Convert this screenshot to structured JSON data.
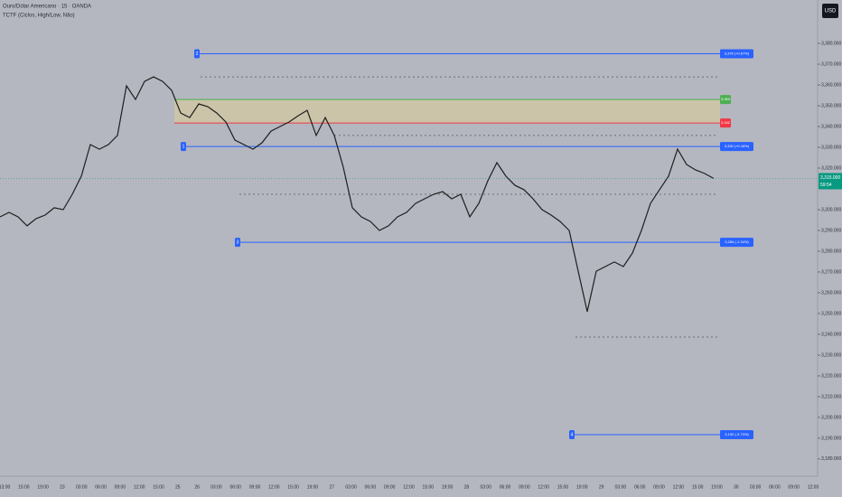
{
  "header": {
    "symbol": "Ouro/Dólar Americano · 15 · OANDA",
    "indicator": "TCTF (Ciclos, High/Low, Não)",
    "currency_button": "USD"
  },
  "chart_data": {
    "type": "line",
    "color": "#1e1e1e",
    "values": [
      3296.5,
      3298.7,
      3296.5,
      3292.2,
      3295.7,
      3297.4,
      3300.9,
      3300.0,
      3307.4,
      3316.1,
      3331.3,
      3329.1,
      3331.3,
      3335.7,
      3359.6,
      3353.0,
      3361.7,
      3363.9,
      3361.7,
      3357.4,
      3346.5,
      3344.3,
      3350.9,
      3349.6,
      3346.5,
      3342.2,
      3333.5,
      3331.3,
      3329.1,
      3332.2,
      3337.8,
      3340.0,
      3342.2,
      3345.2,
      3347.8,
      3335.7,
      3344.3,
      3335.7,
      3320.4,
      3300.9,
      3296.5,
      3294.3,
      3290.0,
      3292.2,
      3296.5,
      3298.7,
      3303.0,
      3305.2,
      3307.4,
      3308.7,
      3305.2,
      3307.4,
      3296.5,
      3303.0,
      3313.9,
      3322.6,
      3316.1,
      3311.7,
      3309.6,
      3305.2,
      3300.0,
      3297.4,
      3294.3,
      3290.0,
      3270.4,
      3250.9,
      3270.4,
      3272.6,
      3274.8,
      3272.6,
      3279.1,
      3290.0,
      3303.0,
      3309.6,
      3316.1,
      3329.1,
      3321.7,
      3319.1,
      3317.4,
      3315.0
    ],
    "xticklabels": [
      "13:00",
      "15:00",
      "19:00",
      "23",
      "03:00",
      "06:00",
      "09:00",
      "12:00",
      "15:00",
      "25",
      "26",
      "03:00",
      "06:00",
      "09:00",
      "12:00",
      "15:00",
      "19:00",
      "27",
      "03:00",
      "06:00",
      "09:00",
      "12:00",
      "15:00",
      "19:00",
      "28",
      "03:00",
      "06:00",
      "09:00",
      "12:00",
      "15:00",
      "19:00",
      "29",
      "03:00",
      "06:00",
      "09:00",
      "12:00",
      "15:00",
      "19:00",
      "30",
      "03:00",
      "06:00",
      "09:00",
      "12:00"
    ],
    "ylim": [
      3171.7,
      3400.9
    ],
    "yticks": [
      {
        "value": 3380,
        "label": "3,380.000"
      },
      {
        "value": 3370,
        "label": "3,370.000"
      },
      {
        "value": 3360,
        "label": "3,360.000"
      },
      {
        "value": 3350,
        "label": "3,350.000"
      },
      {
        "value": 3340,
        "label": "3,340.000"
      },
      {
        "value": 3330,
        "label": "3,330.000"
      },
      {
        "value": 3320,
        "label": "3,320.000"
      },
      {
        "value": 3300,
        "label": "3,300.000"
      },
      {
        "value": 3290,
        "label": "3,290.000"
      },
      {
        "value": 3280,
        "label": "3,280.000"
      },
      {
        "value": 3270,
        "label": "3,270.000"
      },
      {
        "value": 3260,
        "label": "3,260.000"
      },
      {
        "value": 3250,
        "label": "3,250.000"
      },
      {
        "value": 3240,
        "label": "3,240.000"
      },
      {
        "value": 3230,
        "label": "3,230.000"
      },
      {
        "value": 3220,
        "label": "3,220.000"
      },
      {
        "value": 3210,
        "label": "3,210.000"
      },
      {
        "value": 3200,
        "label": "3,200.000"
      },
      {
        "value": 3190,
        "label": "3,190.000"
      },
      {
        "value": 3180,
        "label": "3,180.000"
      }
    ],
    "levels": [
      {
        "marker": "2",
        "value": 3375,
        "label": "3,375 (+0.67%)",
        "color": "#2962ff"
      },
      {
        "marker": "1",
        "value": 3330.4,
        "label": "3,330 (+0.18%)",
        "color": "#2962ff"
      },
      {
        "marker": "3",
        "value": 3284.3,
        "label": "3,284 (-1.34%)",
        "color": "#2962ff"
      },
      {
        "marker": "4",
        "value": 3191.7,
        "label": "3,192 (-3.73%)",
        "color": "#2962ff"
      }
    ],
    "zone": {
      "top": 3353,
      "top_label": "3,353",
      "top_color": "#4caf50",
      "bottom": 3341.7,
      "bottom_label": "3,342",
      "bottom_color": "#f23645",
      "fill": "#d4c9a0"
    },
    "dotted_levels": [
      3363.9,
      3335.7,
      3307.4,
      3238.7
    ],
    "current_price": {
      "value": 3315,
      "label": "3,315.000",
      "countdown": "59:54",
      "color": "#089981"
    }
  }
}
